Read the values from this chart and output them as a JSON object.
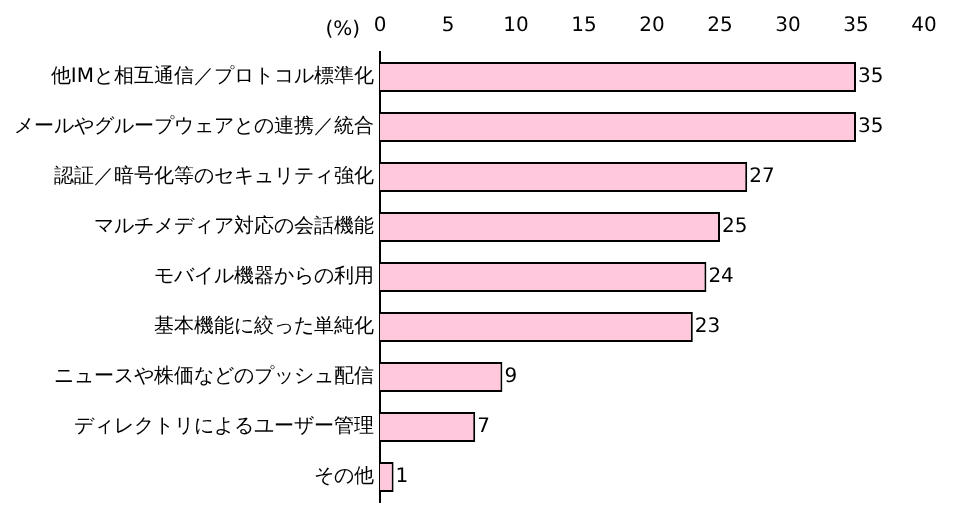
{
  "chart_data": {
    "type": "bar",
    "orientation": "horizontal",
    "xlabel": "(%)",
    "categories": [
      "他IMと相互通信／プロトコル標準化",
      "メールやグループウェアとの連携／統合",
      "認証／暗号化等のセキュリティ強化",
      "マルチメディア対応の会話機能",
      "モバイル機器からの利用",
      "基本機能に絞った単純化",
      "ニュースや株価などのプッシュ配信",
      "ディレクトリによるユーザー管理",
      "その他"
    ],
    "values": [
      35,
      35,
      27,
      25,
      24,
      23,
      9,
      7,
      1
    ],
    "color": "#ffc8dc",
    "xlim": [
      0,
      40
    ],
    "xticks": [
      0,
      5,
      10,
      15,
      20,
      25,
      30,
      35,
      40
    ],
    "data_labels": true,
    "grid": false,
    "legend": false
  }
}
